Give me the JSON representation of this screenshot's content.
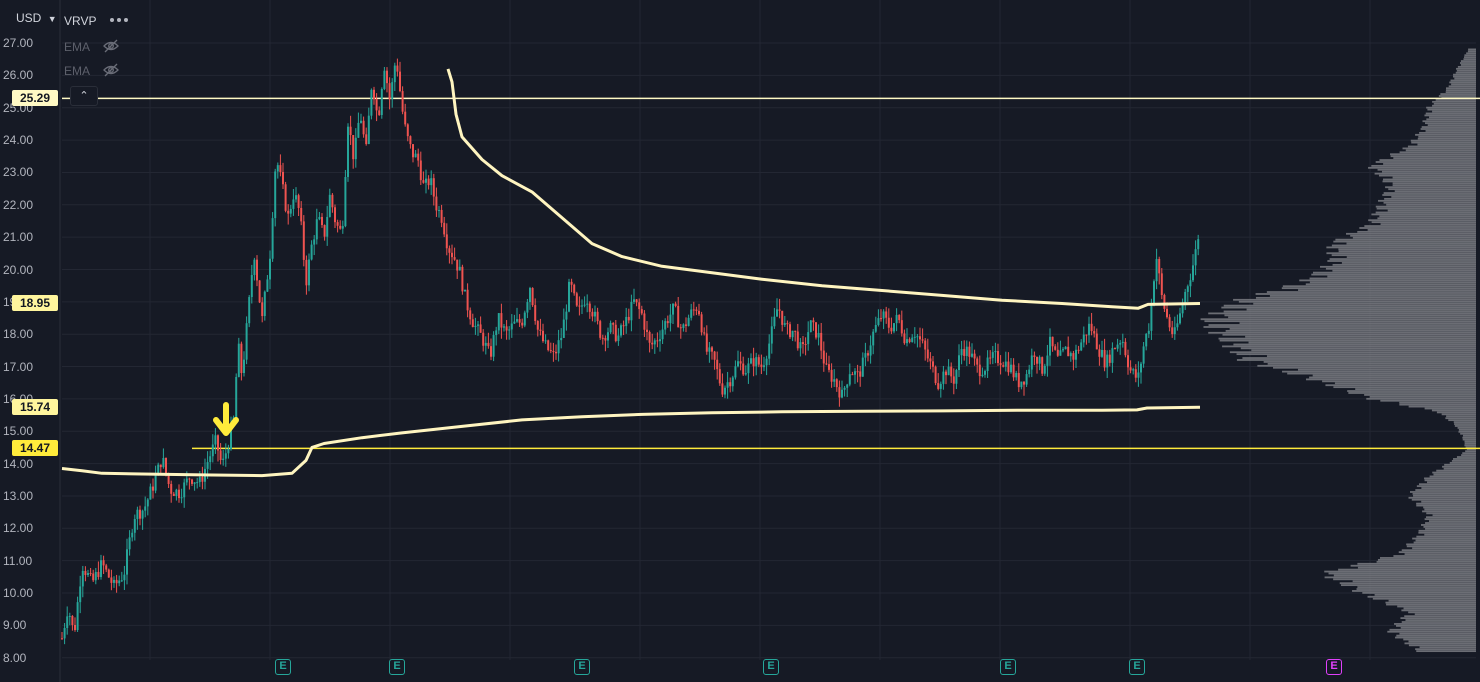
{
  "currency": {
    "label": "USD",
    "chevron": "chevron-down-icon"
  },
  "indicators": [
    {
      "label": "VRVP",
      "icon": "more-dots-icon"
    },
    {
      "label": "EMA",
      "icon": "eye-off-icon"
    },
    {
      "label": "EMA",
      "icon": "eye-off-icon"
    }
  ],
  "collapse_icon": "chevron-up-icon",
  "price_axis": {
    "ticks": [
      "27.00",
      "26.00",
      "25.00",
      "24.00",
      "23.00",
      "22.00",
      "21.00",
      "20.00",
      "19.00",
      "18.00",
      "17.00",
      "16.00",
      "15.00",
      "14.00",
      "13.00",
      "12.00",
      "11.00",
      "10.00",
      "9.00",
      "8.00"
    ]
  },
  "price_tags": [
    {
      "value": "25.29",
      "color": "#fff9c4"
    },
    {
      "value": "18.95",
      "color": "#fff59d"
    },
    {
      "value": "15.74",
      "color": "#fff59d"
    },
    {
      "value": "14.47",
      "color": "#ffeb3b"
    }
  ],
  "earnings_markers": [
    {
      "label": "E",
      "state": "past"
    },
    {
      "label": "E",
      "state": "past"
    },
    {
      "label": "E",
      "state": "past"
    },
    {
      "label": "E",
      "state": "past"
    },
    {
      "label": "E",
      "state": "past"
    },
    {
      "label": "E",
      "state": "past"
    },
    {
      "label": "E",
      "state": "upcoming"
    }
  ],
  "colors": {
    "background": "#161a25",
    "grid": "#232733",
    "candle_up": "#26a69a",
    "candle_down": "#ef5350",
    "ema": "#fff5c0",
    "level_line": "#ffeb3b",
    "volume_profile": "#7a7c82",
    "arrow": "#ffeb3b"
  },
  "chart_data": {
    "type": "candlestick",
    "y_range": [
      7.8,
      27.5
    ],
    "horizontal_levels": [
      25.29,
      14.47
    ],
    "anchor_arrow_price": 14.47,
    "path": [
      [
        0,
        8.6
      ],
      [
        6,
        9.6
      ],
      [
        12,
        8.7
      ],
      [
        20,
        10.9
      ],
      [
        30,
        10.3
      ],
      [
        40,
        10.9
      ],
      [
        52,
        10.2
      ],
      [
        62,
        10.6
      ],
      [
        72,
        12.4
      ],
      [
        82,
        12.6
      ],
      [
        92,
        13.4
      ],
      [
        100,
        14.2
      ],
      [
        108,
        13.2
      ],
      [
        118,
        13.1
      ],
      [
        128,
        13.6
      ],
      [
        138,
        13.4
      ],
      [
        146,
        14.1
      ],
      [
        154,
        14.7
      ],
      [
        160,
        13.9
      ],
      [
        166,
        14.6
      ],
      [
        172,
        15.4
      ],
      [
        176,
        17.7
      ],
      [
        180,
        16.7
      ],
      [
        186,
        18.6
      ],
      [
        192,
        20.6
      ],
      [
        200,
        18.4
      ],
      [
        208,
        20.5
      ],
      [
        214,
        23.5
      ],
      [
        220,
        22.6
      ],
      [
        226,
        21.6
      ],
      [
        232,
        22.4
      ],
      [
        238,
        21.7
      ],
      [
        244,
        19.6
      ],
      [
        250,
        20.8
      ],
      [
        256,
        21.6
      ],
      [
        262,
        21.0
      ],
      [
        268,
        22.3
      ],
      [
        274,
        21.4
      ],
      [
        280,
        21.1
      ],
      [
        286,
        24.6
      ],
      [
        292,
        23.4
      ],
      [
        298,
        24.9
      ],
      [
        304,
        23.6
      ],
      [
        310,
        25.9
      ],
      [
        316,
        24.6
      ],
      [
        322,
        26.4
      ],
      [
        328,
        25.2
      ],
      [
        334,
        26.6
      ],
      [
        340,
        25.0
      ],
      [
        344,
        24.2
      ],
      [
        350,
        23.6
      ],
      [
        356,
        23.4
      ],
      [
        362,
        22.5
      ],
      [
        368,
        22.8
      ],
      [
        374,
        22.0
      ],
      [
        380,
        21.6
      ],
      [
        386,
        20.7
      ],
      [
        392,
        20.4
      ],
      [
        398,
        19.9
      ],
      [
        404,
        19.0
      ],
      [
        412,
        18.3
      ],
      [
        420,
        17.9
      ],
      [
        428,
        17.3
      ],
      [
        436,
        18.5
      ],
      [
        444,
        18.0
      ],
      [
        452,
        18.3
      ],
      [
        460,
        18.4
      ],
      [
        468,
        19.5
      ],
      [
        476,
        18.1
      ],
      [
        484,
        17.6
      ],
      [
        492,
        17.3
      ],
      [
        500,
        18.0
      ],
      [
        508,
        19.6
      ],
      [
        516,
        18.6
      ],
      [
        524,
        19.2
      ],
      [
        532,
        18.6
      ],
      [
        540,
        17.9
      ],
      [
        548,
        18.2
      ],
      [
        556,
        17.9
      ],
      [
        564,
        18.4
      ],
      [
        572,
        19.0
      ],
      [
        580,
        18.6
      ],
      [
        588,
        17.6
      ],
      [
        596,
        17.9
      ],
      [
        604,
        18.4
      ],
      [
        612,
        18.8
      ],
      [
        620,
        18.1
      ],
      [
        628,
        18.6
      ],
      [
        636,
        18.9
      ],
      [
        644,
        17.5
      ],
      [
        652,
        17.2
      ],
      [
        660,
        16.3
      ],
      [
        668,
        16.6
      ],
      [
        676,
        17.1
      ],
      [
        684,
        16.9
      ],
      [
        692,
        17.2
      ],
      [
        700,
        17.0
      ],
      [
        708,
        17.8
      ],
      [
        716,
        18.9
      ],
      [
        724,
        18.1
      ],
      [
        732,
        18.1
      ],
      [
        740,
        17.4
      ],
      [
        748,
        18.3
      ],
      [
        756,
        18.0
      ],
      [
        764,
        16.9
      ],
      [
        772,
        16.6
      ],
      [
        780,
        16.1
      ],
      [
        788,
        16.9
      ],
      [
        796,
        16.7
      ],
      [
        804,
        17.3
      ],
      [
        812,
        18.1
      ],
      [
        820,
        18.6
      ],
      [
        828,
        18.2
      ],
      [
        836,
        18.5
      ],
      [
        844,
        17.8
      ],
      [
        852,
        18.1
      ],
      [
        860,
        17.7
      ],
      [
        868,
        17.1
      ],
      [
        876,
        16.5
      ],
      [
        884,
        16.9
      ],
      [
        892,
        16.6
      ],
      [
        900,
        17.6
      ],
      [
        908,
        17.4
      ],
      [
        916,
        16.9
      ],
      [
        924,
        17.0
      ],
      [
        932,
        17.3
      ],
      [
        940,
        17.2
      ],
      [
        948,
        17.0
      ],
      [
        956,
        16.5
      ],
      [
        964,
        16.7
      ],
      [
        972,
        17.5
      ],
      [
        980,
        16.9
      ],
      [
        988,
        17.7
      ],
      [
        996,
        17.2
      ],
      [
        1004,
        17.5
      ],
      [
        1012,
        17.3
      ],
      [
        1020,
        17.8
      ],
      [
        1028,
        18.3
      ],
      [
        1036,
        17.6
      ],
      [
        1044,
        17.1
      ],
      [
        1052,
        17.6
      ],
      [
        1060,
        17.9
      ],
      [
        1068,
        16.9
      ],
      [
        1076,
        16.6
      ],
      [
        1082,
        17.7
      ],
      [
        1088,
        18.4
      ],
      [
        1094,
        20.5
      ],
      [
        1100,
        19.1
      ],
      [
        1106,
        18.4
      ],
      [
        1112,
        17.9
      ],
      [
        1118,
        18.6
      ],
      [
        1124,
        19.4
      ],
      [
        1130,
        20.0
      ],
      [
        1134,
        20.6
      ],
      [
        1138,
        21.4
      ]
    ],
    "ema_long": [
      [
        0,
        13.85
      ],
      [
        20,
        13.78
      ],
      [
        40,
        13.7
      ],
      [
        80,
        13.68
      ],
      [
        140,
        13.65
      ],
      [
        200,
        13.63
      ],
      [
        230,
        13.7
      ],
      [
        244,
        14.1
      ],
      [
        250,
        14.5
      ],
      [
        262,
        14.62
      ],
      [
        300,
        14.8
      ],
      [
        340,
        14.95
      ],
      [
        400,
        15.15
      ],
      [
        460,
        15.35
      ],
      [
        520,
        15.45
      ],
      [
        580,
        15.52
      ],
      [
        650,
        15.57
      ],
      [
        720,
        15.6
      ],
      [
        800,
        15.62
      ],
      [
        880,
        15.63
      ],
      [
        960,
        15.65
      ],
      [
        1040,
        15.65
      ],
      [
        1075,
        15.66
      ],
      [
        1085,
        15.72
      ],
      [
        1138,
        15.74
      ]
    ],
    "ema_short": [
      [
        386,
        26.2
      ],
      [
        390,
        25.8
      ],
      [
        394,
        24.8
      ],
      [
        400,
        24.1
      ],
      [
        420,
        23.4
      ],
      [
        440,
        22.9
      ],
      [
        470,
        22.4
      ],
      [
        500,
        21.6
      ],
      [
        530,
        20.8
      ],
      [
        560,
        20.4
      ],
      [
        600,
        20.1
      ],
      [
        650,
        19.9
      ],
      [
        700,
        19.7
      ],
      [
        760,
        19.5
      ],
      [
        820,
        19.35
      ],
      [
        880,
        19.2
      ],
      [
        940,
        19.05
      ],
      [
        1000,
        18.95
      ],
      [
        1050,
        18.85
      ],
      [
        1076,
        18.8
      ],
      [
        1086,
        18.92
      ],
      [
        1138,
        18.95
      ]
    ]
  }
}
